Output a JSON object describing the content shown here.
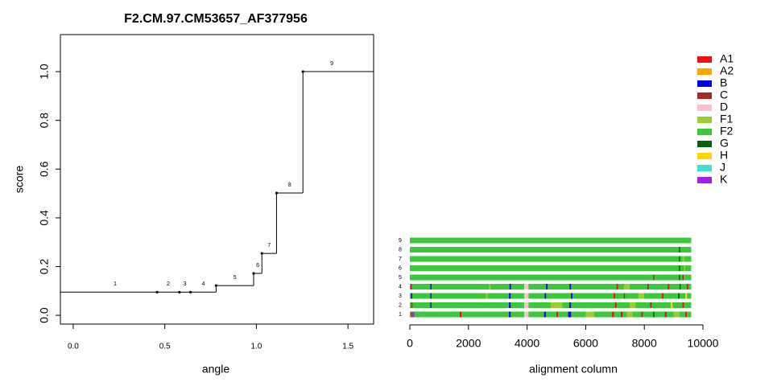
{
  "chart_data": [
    {
      "type": "step",
      "title": "F2.CM.97.CM53657_AF377956",
      "xlabel": "angle",
      "ylabel": "score",
      "labels": [
        "1",
        "2",
        "3",
        "4",
        "5",
        "6",
        "7",
        "8",
        "9"
      ],
      "starts": [
        0,
        0.458,
        0.58,
        0.64,
        0.78,
        0.985,
        1.03,
        1.11,
        1.254
      ],
      "ends": [
        0.458,
        0.58,
        0.64,
        0.78,
        0.985,
        1.03,
        1.11,
        1.254,
        1.57
      ],
      "values": [
        0.095,
        0.095,
        0.095,
        0.095,
        0.122,
        0.172,
        0.254,
        0.502,
        1.0
      ],
      "xlim": [
        -0.07,
        1.64
      ],
      "xticks": [
        {
          "value": 0,
          "label": "0.0"
        },
        0.5,
        {
          "value": 1,
          "label": "1.0"
        },
        1.5
      ],
      "ylim": [
        -0.036,
        1.152
      ],
      "yticks": [
        {
          "value": 0,
          "label": "0.0"
        },
        0.2,
        0.4,
        0.6,
        0.8,
        {
          "value": 1,
          "label": "1.0"
        }
      ]
    },
    {
      "type": "alignment",
      "xlabel": "alignment column",
      "xlim": [
        0,
        10000
      ],
      "xticks": [
        0,
        2000,
        4000,
        6000,
        8000,
        10000
      ],
      "legend": [
        {
          "name": "A1",
          "color": "#ee1111"
        },
        {
          "name": "A2",
          "color": "#ffa500"
        },
        {
          "name": "B",
          "color": "#0000ee"
        },
        {
          "name": "C",
          "color": "#a52a2a"
        },
        {
          "name": "D",
          "color": "#ffc0cb"
        },
        {
          "name": "F1",
          "color": "#9acd32"
        },
        {
          "name": "F2",
          "color": "#3cc83c"
        },
        {
          "name": "G",
          "color": "#006400"
        },
        {
          "name": "H",
          "color": "#ffd700"
        },
        {
          "name": "J",
          "color": "#40e0d0"
        },
        {
          "name": "K",
          "color": "#a020f0"
        }
      ],
      "rows": [
        {
          "label": "1",
          "segments": [
            {
              "start": 0,
              "end": 9600,
              "subtype": "F2"
            },
            {
              "start": 40,
              "end": 80,
              "subtype": "A1"
            },
            {
              "start": 90,
              "end": 150,
              "subtype": "K"
            },
            {
              "start": 1700,
              "end": 1760,
              "subtype": "A1"
            },
            {
              "start": 3380,
              "end": 3440,
              "subtype": "B"
            },
            {
              "start": 3900,
              "end": 4050,
              "subtype": "D"
            },
            {
              "start": 4580,
              "end": 4640,
              "subtype": "B"
            },
            {
              "start": 5000,
              "end": 5050,
              "subtype": "A1"
            },
            {
              "start": 5400,
              "end": 5500,
              "subtype": "B"
            },
            {
              "start": 6000,
              "end": 6300,
              "subtype": "F1"
            },
            {
              "start": 6900,
              "end": 6960,
              "subtype": "A1"
            },
            {
              "start": 7200,
              "end": 7260,
              "subtype": "C"
            },
            {
              "start": 7400,
              "end": 7600,
              "subtype": "F1"
            },
            {
              "start": 7900,
              "end": 7950,
              "subtype": "A1"
            },
            {
              "start": 8300,
              "end": 8340,
              "subtype": "G"
            },
            {
              "start": 8700,
              "end": 8760,
              "subtype": "C"
            },
            {
              "start": 9000,
              "end": 9200,
              "subtype": "F1"
            },
            {
              "start": 9400,
              "end": 9450,
              "subtype": "A1"
            }
          ]
        },
        {
          "label": "2",
          "segments": [
            {
              "start": 0,
              "end": 9600,
              "subtype": "F2"
            },
            {
              "start": 50,
              "end": 90,
              "subtype": "A1"
            },
            {
              "start": 700,
              "end": 740,
              "subtype": "B"
            },
            {
              "start": 3380,
              "end": 3440,
              "subtype": "B"
            },
            {
              "start": 3900,
              "end": 4050,
              "subtype": "D"
            },
            {
              "start": 4800,
              "end": 5200,
              "subtype": "F1"
            },
            {
              "start": 5440,
              "end": 5500,
              "subtype": "B"
            },
            {
              "start": 7000,
              "end": 7050,
              "subtype": "A1"
            },
            {
              "start": 7500,
              "end": 7700,
              "subtype": "F1"
            },
            {
              "start": 8200,
              "end": 8250,
              "subtype": "C"
            },
            {
              "start": 8900,
              "end": 8960,
              "subtype": "H"
            },
            {
              "start": 9300,
              "end": 9350,
              "subtype": "A1"
            }
          ]
        },
        {
          "label": "3",
          "segments": [
            {
              "start": 0,
              "end": 9600,
              "subtype": "F2"
            },
            {
              "start": 40,
              "end": 80,
              "subtype": "B"
            },
            {
              "start": 700,
              "end": 740,
              "subtype": "B"
            },
            {
              "start": 2600,
              "end": 2650,
              "subtype": "F1"
            },
            {
              "start": 3380,
              "end": 3440,
              "subtype": "B"
            },
            {
              "start": 3900,
              "end": 4050,
              "subtype": "D"
            },
            {
              "start": 4600,
              "end": 4650,
              "subtype": "B"
            },
            {
              "start": 5500,
              "end": 5550,
              "subtype": "B"
            },
            {
              "start": 6950,
              "end": 7000,
              "subtype": "A1"
            },
            {
              "start": 7300,
              "end": 7340,
              "subtype": "C"
            },
            {
              "start": 7800,
              "end": 8000,
              "subtype": "F1"
            },
            {
              "start": 8600,
              "end": 8650,
              "subtype": "A1"
            },
            {
              "start": 9150,
              "end": 9200,
              "subtype": "G"
            },
            {
              "start": 9400,
              "end": 9460,
              "subtype": "H"
            }
          ]
        },
        {
          "label": "4",
          "segments": [
            {
              "start": 0,
              "end": 9600,
              "subtype": "F2"
            },
            {
              "start": 30,
              "end": 70,
              "subtype": "A1"
            },
            {
              "start": 700,
              "end": 740,
              "subtype": "B"
            },
            {
              "start": 2700,
              "end": 2750,
              "subtype": "F1"
            },
            {
              "start": 3400,
              "end": 3450,
              "subtype": "B"
            },
            {
              "start": 3900,
              "end": 4050,
              "subtype": "D"
            },
            {
              "start": 4650,
              "end": 4700,
              "subtype": "B"
            },
            {
              "start": 5450,
              "end": 5500,
              "subtype": "B"
            },
            {
              "start": 7050,
              "end": 7100,
              "subtype": "A1"
            },
            {
              "start": 7300,
              "end": 7500,
              "subtype": "F1"
            },
            {
              "start": 8100,
              "end": 8150,
              "subtype": "C"
            },
            {
              "start": 8800,
              "end": 8850,
              "subtype": "A1"
            },
            {
              "start": 9200,
              "end": 9240,
              "subtype": "G"
            },
            {
              "start": 9450,
              "end": 9500,
              "subtype": "A1"
            }
          ]
        },
        {
          "label": "5",
          "segments": [
            {
              "start": 0,
              "end": 9600,
              "subtype": "F2"
            },
            {
              "start": 8300,
              "end": 8340,
              "subtype": "C"
            },
            {
              "start": 9180,
              "end": 9220,
              "subtype": "G"
            },
            {
              "start": 9300,
              "end": 9340,
              "subtype": "C"
            }
          ]
        },
        {
          "label": "6",
          "segments": [
            {
              "start": 0,
              "end": 9600,
              "subtype": "F2"
            },
            {
              "start": 9180,
              "end": 9220,
              "subtype": "G"
            },
            {
              "start": 9350,
              "end": 9400,
              "subtype": "F1"
            }
          ]
        },
        {
          "label": "7",
          "segments": [
            {
              "start": 0,
              "end": 9600,
              "subtype": "F2"
            },
            {
              "start": 9180,
              "end": 9220,
              "subtype": "G"
            },
            {
              "start": 9300,
              "end": 9360,
              "subtype": "F1"
            }
          ]
        },
        {
          "label": "8",
          "segments": [
            {
              "start": 0,
              "end": 9600,
              "subtype": "F2"
            },
            {
              "start": 9180,
              "end": 9220,
              "subtype": "G"
            }
          ]
        },
        {
          "label": "9",
          "segments": [
            {
              "start": 0,
              "end": 9600,
              "subtype": "F2"
            }
          ]
        }
      ]
    }
  ]
}
